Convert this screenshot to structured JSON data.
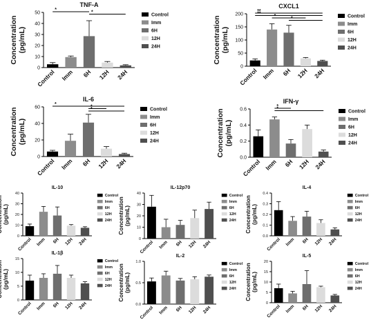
{
  "colors": {
    "Control": "#000000",
    "Imm": "#8c8c8c",
    "6H": "#6e6e6e",
    "12H": "#dcdcdc",
    "24H": "#4f4f4f"
  },
  "chart_data": [
    {
      "type": "bar",
      "title": "TNF-A",
      "ylabel": "Concentration\n(pg/mL)",
      "categories": [
        "Control",
        "Imm",
        "6H",
        "12H",
        "24H"
      ],
      "values": [
        3.0,
        9.5,
        28.5,
        4.5,
        2.0
      ],
      "errors": [
        1.5,
        1.0,
        14.0,
        1.0,
        0.6
      ],
      "ylim": [
        0,
        50
      ],
      "yticks": [
        0,
        10,
        20,
        30,
        40,
        50
      ],
      "legend": [
        "Control",
        "Imm",
        "6H",
        "12H",
        "24H"
      ],
      "significance": [
        {
          "from": "Control",
          "to": "6H",
          "label": "*"
        },
        {
          "from": "6H",
          "to": "24H",
          "label": "*"
        }
      ]
    },
    {
      "type": "bar",
      "title": "CXCL1",
      "ylabel": "Concentration\n(pg/mL)",
      "categories": [
        "Control",
        "Imm",
        "6H",
        "12H",
        "24H"
      ],
      "values": [
        22,
        140,
        128,
        30,
        20
      ],
      "errors": [
        6,
        22,
        28,
        3,
        3
      ],
      "ylim": [
        0,
        200
      ],
      "yticks": [
        0,
        50,
        100,
        150,
        200
      ],
      "legend": [
        "Control",
        "Imm",
        "6H",
        "12H",
        "24H"
      ],
      "significance": [
        {
          "from": "Control",
          "to": "24H",
          "label": "**"
        },
        {
          "from": "Control",
          "to": "24H",
          "label": "**"
        },
        {
          "from": "Imm",
          "to": "12H",
          "label": "*"
        },
        {
          "from": "6H",
          "to": "24H",
          "label": "*"
        }
      ]
    },
    {
      "type": "bar",
      "title": "IL-6",
      "ylabel": "Concentration\n(pg/mL)",
      "categories": [
        "Control",
        "Imm",
        "6H",
        "12H",
        "24H"
      ],
      "values": [
        6,
        19,
        41,
        9.5,
        3
      ],
      "errors": [
        1.5,
        8,
        10,
        2.5,
        1
      ],
      "ylim": [
        0,
        60
      ],
      "yticks": [
        0,
        20,
        40,
        60
      ],
      "legend": [
        "Control",
        "Imm",
        "6H",
        "12H",
        "24H"
      ],
      "significance": [
        {
          "from": "Control",
          "to": "24H",
          "label": "*"
        },
        {
          "from": "6H",
          "to": "12H",
          "label": "*"
        },
        {
          "from": "6H",
          "to": "24H",
          "label": "*"
        }
      ]
    },
    {
      "type": "bar",
      "title": "IFN-γ",
      "ylabel": "Concentration\n(pg/mL)",
      "categories": [
        "Control",
        "Imm",
        "6H",
        "12H",
        "24H"
      ],
      "values": [
        0.26,
        0.47,
        0.17,
        0.35,
        0.07
      ],
      "errors": [
        0.08,
        0.03,
        0.05,
        0.05,
        0.02
      ],
      "ylim": [
        0,
        0.6
      ],
      "yticks": [
        0.0,
        0.2,
        0.4,
        0.6
      ],
      "legend": [
        "Control",
        "Imm",
        "6H",
        "12H",
        "24H"
      ],
      "significance": [
        {
          "from": "Imm",
          "to": "6H",
          "label": "*"
        },
        {
          "from": "Imm",
          "to": "24H",
          "label": "*"
        }
      ]
    },
    {
      "type": "bar",
      "title": "IL-10",
      "ylabel": "Concentration\n(pg/mL)",
      "categories": [
        "Control",
        "Imm",
        "6H",
        "12H",
        "24H"
      ],
      "values": [
        9,
        22.5,
        19,
        9.5,
        7.5
      ],
      "errors": [
        2,
        5,
        8,
        1,
        1
      ],
      "ylim": [
        0,
        40
      ],
      "yticks": [
        0,
        10,
        20,
        30,
        40
      ],
      "legend": [
        "Control",
        "Imm",
        "6H",
        "12H",
        "24H"
      ],
      "significance": []
    },
    {
      "type": "bar",
      "title": "IL-12p70",
      "ylabel": "Concentration\n(pg/mL)",
      "categories": [
        "Control",
        "Imm",
        "6H",
        "12H",
        "24H"
      ],
      "values": [
        28,
        10,
        12,
        18,
        26
      ],
      "errors": [
        10,
        7,
        4,
        7,
        6
      ],
      "ylim": [
        0,
        40
      ],
      "yticks": [
        0,
        10,
        20,
        30,
        40
      ],
      "legend": [
        "Control",
        "Imm",
        "6H",
        "12H",
        "24H"
      ],
      "significance": []
    },
    {
      "type": "bar",
      "title": "IL-4",
      "ylabel": "Concentration\n(pg/mL)",
      "categories": [
        "Control",
        "Imm",
        "6H",
        "12H",
        "24H"
      ],
      "values": [
        0.24,
        0.14,
        0.18,
        0.12,
        0.06
      ],
      "errors": [
        0.08,
        0.04,
        0.05,
        0.03,
        0.015
      ],
      "ylim": [
        0,
        0.4
      ],
      "yticks": [
        0.0,
        0.1,
        0.2,
        0.3,
        0.4
      ],
      "legend": [
        "Control",
        "Imm",
        "6H",
        "12H",
        "24H"
      ],
      "significance": []
    },
    {
      "type": "bar",
      "title": "IL-1β",
      "ylabel": "Concentration\n(pg/mL)",
      "categories": [
        "Control",
        "Imm",
        "6H",
        "12H",
        "24H"
      ],
      "values": [
        7,
        8,
        9.5,
        8,
        6
      ],
      "errors": [
        2,
        1.5,
        3,
        1,
        0.6
      ],
      "ylim": [
        0,
        15
      ],
      "yticks": [
        0,
        5,
        10,
        15
      ],
      "legend": [
        "Control",
        "Imm",
        "6H",
        "12H",
        "24H"
      ],
      "significance": []
    },
    {
      "type": "bar",
      "title": "IL-2",
      "ylabel": "Concentration\n(pg/mL)",
      "categories": [
        "Control",
        "Imm",
        "6H",
        "12H",
        "24H"
      ],
      "values": [
        0.53,
        0.67,
        0.55,
        0.58,
        0.64
      ],
      "errors": [
        0.08,
        0.1,
        0.05,
        0.06,
        0.04
      ],
      "ylim": [
        0,
        1.0
      ],
      "yticks": [
        0.0,
        0.5,
        1.0
      ],
      "legend": [
        "Control",
        "Imm",
        "6H",
        "12H",
        "24H"
      ],
      "significance": []
    },
    {
      "type": "bar",
      "title": "IL-5",
      "ylabel": "Concentration\n(pg/mL)",
      "categories": [
        "Control",
        "Imm",
        "6H",
        "12H",
        "24H"
      ],
      "values": [
        7,
        4.5,
        9,
        7.5,
        3.5
      ],
      "errors": [
        2,
        1,
        6.5,
        0.5,
        0.5
      ],
      "ylim": [
        0,
        20
      ],
      "yticks": [
        0,
        5,
        10,
        15,
        20
      ],
      "legend": [
        "Control",
        "Imm",
        "6H",
        "12H",
        "24H"
      ],
      "significance": []
    }
  ]
}
